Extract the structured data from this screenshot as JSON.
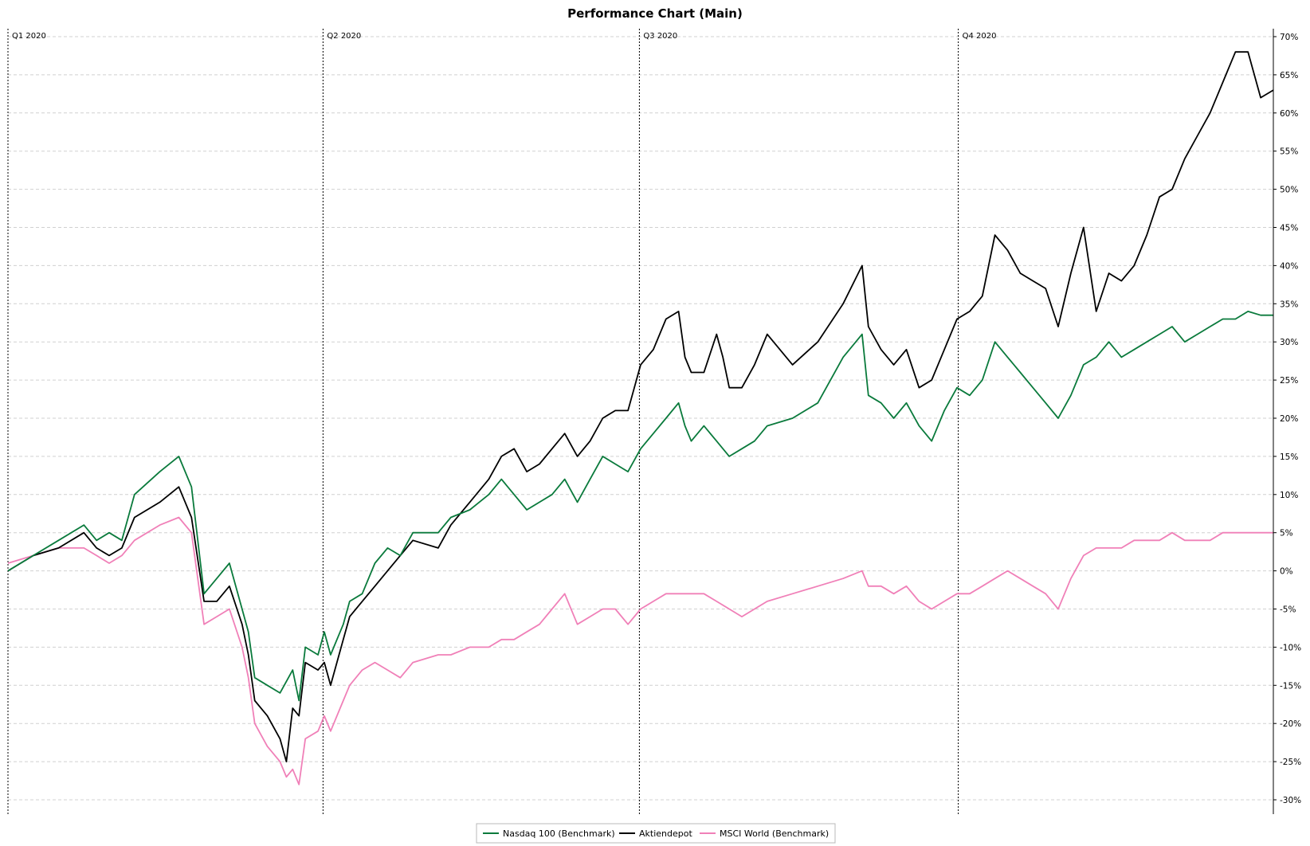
{
  "chart_data": {
    "type": "line",
    "title": "Performance Chart (Main)",
    "xlabel": "",
    "ylabel": "",
    "x_range": [
      0,
      1
    ],
    "ylim": [
      -31,
      71
    ],
    "yticks": [
      70,
      65,
      60,
      55,
      50,
      45,
      40,
      35,
      30,
      25,
      20,
      15,
      10,
      5,
      0,
      -5,
      -10,
      -15,
      -20,
      -25,
      -30
    ],
    "ytick_labels": [
      "70%",
      "65%",
      "60%",
      "55%",
      "50%",
      "45%",
      "40%",
      "35%",
      "30%",
      "25%",
      "20%",
      "15%",
      "10%",
      "5%",
      "0%",
      "-5%",
      "-10%",
      "-15%",
      "-20%",
      "-25%",
      "-30%"
    ],
    "quarters": [
      {
        "label": "Q1 2020",
        "x": 0.0
      },
      {
        "label": "Q2 2020",
        "x": 0.249
      },
      {
        "label": "Q3 2020",
        "x": 0.499
      },
      {
        "label": "Q4 2020",
        "x": 0.751
      }
    ],
    "grid": true,
    "legend_position": "bottom-center",
    "series": [
      {
        "name": "Nasdaq 100 (Benchmark)",
        "color": "#0a7a3c",
        "points": [
          [
            0,
            0
          ],
          [
            0.02,
            2
          ],
          [
            0.04,
            4
          ],
          [
            0.06,
            6
          ],
          [
            0.07,
            4
          ],
          [
            0.08,
            5
          ],
          [
            0.09,
            4
          ],
          [
            0.1,
            10
          ],
          [
            0.12,
            13
          ],
          [
            0.135,
            15
          ],
          [
            0.145,
            11
          ],
          [
            0.155,
            -3
          ],
          [
            0.165,
            -1
          ],
          [
            0.175,
            1
          ],
          [
            0.185,
            -5
          ],
          [
            0.19,
            -8
          ],
          [
            0.195,
            -14
          ],
          [
            0.205,
            -15
          ],
          [
            0.215,
            -16
          ],
          [
            0.225,
            -13
          ],
          [
            0.23,
            -17
          ],
          [
            0.235,
            -10
          ],
          [
            0.245,
            -11
          ],
          [
            0.25,
            -8
          ],
          [
            0.255,
            -11
          ],
          [
            0.265,
            -7
          ],
          [
            0.27,
            -4
          ],
          [
            0.28,
            -3
          ],
          [
            0.29,
            1
          ],
          [
            0.3,
            3
          ],
          [
            0.31,
            2
          ],
          [
            0.32,
            5
          ],
          [
            0.34,
            5
          ],
          [
            0.35,
            7
          ],
          [
            0.365,
            8
          ],
          [
            0.38,
            10
          ],
          [
            0.39,
            12
          ],
          [
            0.4,
            10
          ],
          [
            0.41,
            8
          ],
          [
            0.42,
            9
          ],
          [
            0.43,
            10
          ],
          [
            0.44,
            12
          ],
          [
            0.45,
            9
          ],
          [
            0.46,
            12
          ],
          [
            0.47,
            15
          ],
          [
            0.48,
            14
          ],
          [
            0.49,
            13
          ],
          [
            0.5,
            16
          ],
          [
            0.51,
            18
          ],
          [
            0.52,
            20
          ],
          [
            0.53,
            22
          ],
          [
            0.535,
            19
          ],
          [
            0.54,
            17
          ],
          [
            0.55,
            19
          ],
          [
            0.56,
            17
          ],
          [
            0.57,
            15
          ],
          [
            0.58,
            16
          ],
          [
            0.59,
            17
          ],
          [
            0.6,
            19
          ],
          [
            0.62,
            20
          ],
          [
            0.64,
            22
          ],
          [
            0.66,
            28
          ],
          [
            0.675,
            31
          ],
          [
            0.68,
            23
          ],
          [
            0.69,
            22
          ],
          [
            0.7,
            20
          ],
          [
            0.71,
            22
          ],
          [
            0.72,
            19
          ],
          [
            0.73,
            17
          ],
          [
            0.74,
            21
          ],
          [
            0.75,
            24
          ],
          [
            0.76,
            23
          ],
          [
            0.77,
            25
          ],
          [
            0.78,
            30
          ],
          [
            0.79,
            28
          ],
          [
            0.8,
            26
          ],
          [
            0.81,
            24
          ],
          [
            0.82,
            22
          ],
          [
            0.83,
            20
          ],
          [
            0.84,
            23
          ],
          [
            0.85,
            27
          ],
          [
            0.86,
            28
          ],
          [
            0.87,
            30
          ],
          [
            0.88,
            28
          ],
          [
            0.89,
            29
          ],
          [
            0.9,
            30
          ],
          [
            0.91,
            31
          ],
          [
            0.92,
            32
          ],
          [
            0.93,
            30
          ],
          [
            0.94,
            31
          ],
          [
            0.95,
            32
          ],
          [
            0.96,
            33
          ],
          [
            0.97,
            33
          ],
          [
            0.98,
            34
          ],
          [
            0.99,
            33.5
          ],
          [
            1.0,
            33.5
          ]
        ]
      },
      {
        "name": "Aktiendepot",
        "color": "#000000",
        "points": [
          [
            0,
            0
          ],
          [
            0.02,
            2
          ],
          [
            0.04,
            3
          ],
          [
            0.06,
            5
          ],
          [
            0.07,
            3
          ],
          [
            0.08,
            2
          ],
          [
            0.09,
            3
          ],
          [
            0.1,
            7
          ],
          [
            0.12,
            9
          ],
          [
            0.135,
            11
          ],
          [
            0.145,
            7
          ],
          [
            0.155,
            -4
          ],
          [
            0.165,
            -4
          ],
          [
            0.175,
            -2
          ],
          [
            0.185,
            -7
          ],
          [
            0.19,
            -11
          ],
          [
            0.195,
            -17
          ],
          [
            0.205,
            -19
          ],
          [
            0.215,
            -22
          ],
          [
            0.22,
            -25
          ],
          [
            0.225,
            -18
          ],
          [
            0.23,
            -19
          ],
          [
            0.235,
            -12
          ],
          [
            0.245,
            -13
          ],
          [
            0.25,
            -12
          ],
          [
            0.255,
            -15
          ],
          [
            0.265,
            -9
          ],
          [
            0.27,
            -6
          ],
          [
            0.28,
            -4
          ],
          [
            0.29,
            -2
          ],
          [
            0.3,
            0
          ],
          [
            0.31,
            2
          ],
          [
            0.32,
            4
          ],
          [
            0.34,
            3
          ],
          [
            0.35,
            6
          ],
          [
            0.365,
            9
          ],
          [
            0.38,
            12
          ],
          [
            0.39,
            15
          ],
          [
            0.4,
            16
          ],
          [
            0.41,
            13
          ],
          [
            0.42,
            14
          ],
          [
            0.43,
            16
          ],
          [
            0.44,
            18
          ],
          [
            0.45,
            15
          ],
          [
            0.46,
            17
          ],
          [
            0.47,
            20
          ],
          [
            0.48,
            21
          ],
          [
            0.49,
            21
          ],
          [
            0.5,
            27
          ],
          [
            0.51,
            29
          ],
          [
            0.52,
            33
          ],
          [
            0.53,
            34
          ],
          [
            0.535,
            28
          ],
          [
            0.54,
            26
          ],
          [
            0.55,
            26
          ],
          [
            0.56,
            31
          ],
          [
            0.565,
            28
          ],
          [
            0.57,
            24
          ],
          [
            0.58,
            24
          ],
          [
            0.59,
            27
          ],
          [
            0.6,
            31
          ],
          [
            0.62,
            27
          ],
          [
            0.64,
            30
          ],
          [
            0.66,
            35
          ],
          [
            0.675,
            40
          ],
          [
            0.68,
            32
          ],
          [
            0.69,
            29
          ],
          [
            0.7,
            27
          ],
          [
            0.71,
            29
          ],
          [
            0.72,
            24
          ],
          [
            0.73,
            25
          ],
          [
            0.74,
            29
          ],
          [
            0.75,
            33
          ],
          [
            0.76,
            34
          ],
          [
            0.77,
            36
          ],
          [
            0.78,
            44
          ],
          [
            0.79,
            42
          ],
          [
            0.8,
            39
          ],
          [
            0.81,
            38
          ],
          [
            0.82,
            37
          ],
          [
            0.83,
            32
          ],
          [
            0.84,
            39
          ],
          [
            0.85,
            45
          ],
          [
            0.86,
            34
          ],
          [
            0.87,
            39
          ],
          [
            0.88,
            38
          ],
          [
            0.89,
            40
          ],
          [
            0.9,
            44
          ],
          [
            0.91,
            49
          ],
          [
            0.92,
            50
          ],
          [
            0.93,
            54
          ],
          [
            0.94,
            57
          ],
          [
            0.95,
            60
          ],
          [
            0.96,
            64
          ],
          [
            0.97,
            68
          ],
          [
            0.98,
            68
          ],
          [
            0.99,
            62
          ],
          [
            1.0,
            63
          ]
        ]
      },
      {
        "name": "MSCI World (Benchmark)",
        "color": "#f080b8",
        "points": [
          [
            0,
            1
          ],
          [
            0.02,
            2
          ],
          [
            0.04,
            3
          ],
          [
            0.06,
            3
          ],
          [
            0.07,
            2
          ],
          [
            0.08,
            1
          ],
          [
            0.09,
            2
          ],
          [
            0.1,
            4
          ],
          [
            0.12,
            6
          ],
          [
            0.135,
            7
          ],
          [
            0.145,
            5
          ],
          [
            0.155,
            -7
          ],
          [
            0.165,
            -6
          ],
          [
            0.175,
            -5
          ],
          [
            0.185,
            -10
          ],
          [
            0.19,
            -14
          ],
          [
            0.195,
            -20
          ],
          [
            0.205,
            -23
          ],
          [
            0.215,
            -25
          ],
          [
            0.22,
            -27
          ],
          [
            0.225,
            -26
          ],
          [
            0.23,
            -28
          ],
          [
            0.235,
            -22
          ],
          [
            0.245,
            -21
          ],
          [
            0.25,
            -19
          ],
          [
            0.255,
            -21
          ],
          [
            0.265,
            -17
          ],
          [
            0.27,
            -15
          ],
          [
            0.28,
            -13
          ],
          [
            0.29,
            -12
          ],
          [
            0.3,
            -13
          ],
          [
            0.31,
            -14
          ],
          [
            0.32,
            -12
          ],
          [
            0.34,
            -11
          ],
          [
            0.35,
            -11
          ],
          [
            0.365,
            -10
          ],
          [
            0.38,
            -10
          ],
          [
            0.39,
            -9
          ],
          [
            0.4,
            -9
          ],
          [
            0.41,
            -8
          ],
          [
            0.42,
            -7
          ],
          [
            0.43,
            -5
          ],
          [
            0.44,
            -3
          ],
          [
            0.45,
            -7
          ],
          [
            0.46,
            -6
          ],
          [
            0.47,
            -5
          ],
          [
            0.48,
            -5
          ],
          [
            0.49,
            -7
          ],
          [
            0.5,
            -5
          ],
          [
            0.51,
            -4
          ],
          [
            0.52,
            -3
          ],
          [
            0.53,
            -3
          ],
          [
            0.54,
            -3
          ],
          [
            0.55,
            -3
          ],
          [
            0.56,
            -4
          ],
          [
            0.57,
            -5
          ],
          [
            0.58,
            -6
          ],
          [
            0.59,
            -5
          ],
          [
            0.6,
            -4
          ],
          [
            0.62,
            -3
          ],
          [
            0.64,
            -2
          ],
          [
            0.66,
            -1
          ],
          [
            0.675,
            0
          ],
          [
            0.68,
            -2
          ],
          [
            0.69,
            -2
          ],
          [
            0.7,
            -3
          ],
          [
            0.71,
            -2
          ],
          [
            0.72,
            -4
          ],
          [
            0.73,
            -5
          ],
          [
            0.74,
            -4
          ],
          [
            0.75,
            -3
          ],
          [
            0.76,
            -3
          ],
          [
            0.77,
            -2
          ],
          [
            0.78,
            -1
          ],
          [
            0.79,
            0
          ],
          [
            0.8,
            -1
          ],
          [
            0.81,
            -2
          ],
          [
            0.82,
            -3
          ],
          [
            0.83,
            -5
          ],
          [
            0.84,
            -1
          ],
          [
            0.85,
            2
          ],
          [
            0.86,
            3
          ],
          [
            0.87,
            3
          ],
          [
            0.88,
            3
          ],
          [
            0.89,
            4
          ],
          [
            0.9,
            4
          ],
          [
            0.91,
            4
          ],
          [
            0.92,
            5
          ],
          [
            0.93,
            4
          ],
          [
            0.94,
            4
          ],
          [
            0.95,
            4
          ],
          [
            0.96,
            5
          ],
          [
            0.97,
            5
          ],
          [
            0.98,
            5
          ],
          [
            0.99,
            5
          ],
          [
            1.0,
            5
          ]
        ]
      }
    ]
  }
}
